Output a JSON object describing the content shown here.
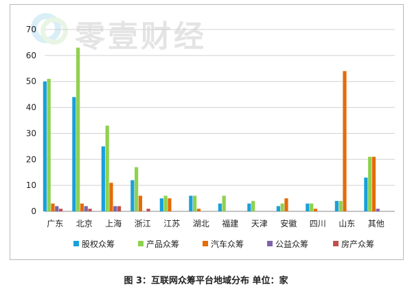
{
  "watermark": {
    "text": "零壹财经"
  },
  "caption": "图 3：互联网众筹平台地域分布 单位：家",
  "chart_data": {
    "type": "bar",
    "title": "",
    "xlabel": "",
    "ylabel": "",
    "ylim": [
      0,
      70
    ],
    "yticks": [
      0,
      10,
      20,
      30,
      40,
      50,
      60,
      70
    ],
    "grid": true,
    "legend_position": "bottom",
    "categories": [
      "广东",
      "北京",
      "上海",
      "浙江",
      "江苏",
      "湖北",
      "福建",
      "天津",
      "安徽",
      "四川",
      "山东",
      "其他"
    ],
    "series": [
      {
        "name": "股权众筹",
        "color": "#19a0d9",
        "values": [
          50,
          44,
          25,
          12,
          5,
          6,
          3,
          3,
          2,
          3,
          4,
          13
        ]
      },
      {
        "name": "产品众筹",
        "color": "#8fd14f",
        "values": [
          51,
          63,
          33,
          17,
          6,
          6,
          6,
          4,
          3,
          3,
          4,
          21
        ]
      },
      {
        "name": "汽车众筹",
        "color": "#e46c0a",
        "values": [
          3,
          3,
          11,
          6,
          5,
          1,
          0,
          0,
          5,
          1,
          54,
          21
        ]
      },
      {
        "name": "公益众筹",
        "color": "#7f63a8",
        "values": [
          2,
          2,
          2,
          0,
          0,
          0,
          0,
          0,
          0,
          0,
          0,
          1
        ]
      },
      {
        "name": "房产众筹",
        "color": "#c0504d",
        "values": [
          1,
          1,
          2,
          1,
          0,
          0,
          0,
          0,
          0,
          0,
          0,
          0
        ]
      }
    ]
  }
}
